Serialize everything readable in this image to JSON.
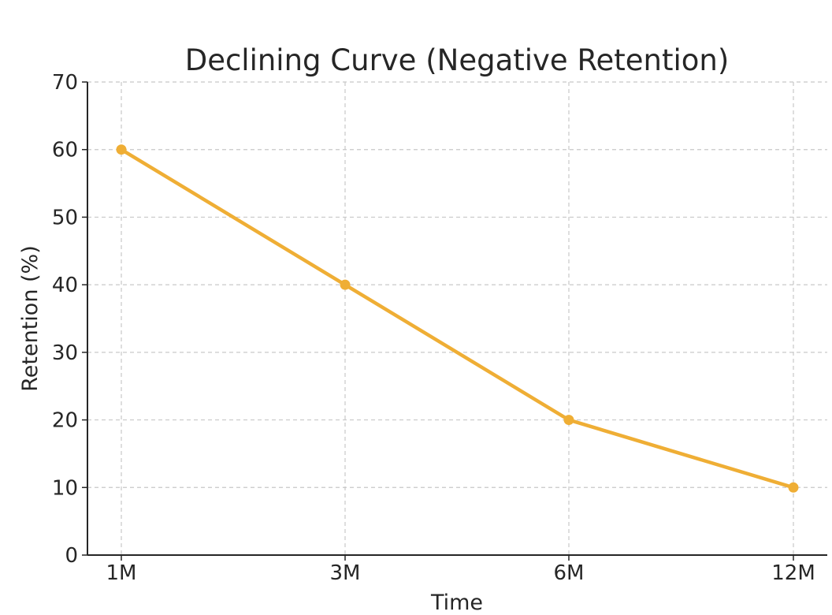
{
  "chart_data": {
    "type": "line",
    "title": "Declining Curve (Negative Retention)",
    "xlabel": "Time",
    "ylabel": "Retention (%)",
    "categories": [
      "1M",
      "3M",
      "6M",
      "12M"
    ],
    "series": [
      {
        "values": [
          60,
          40,
          20,
          10
        ],
        "color": "#EFAE35"
      }
    ],
    "ylim": [
      0,
      70
    ],
    "yticks": [
      0,
      10,
      20,
      30,
      40,
      50,
      60,
      70
    ],
    "grid": true,
    "markers": true
  }
}
